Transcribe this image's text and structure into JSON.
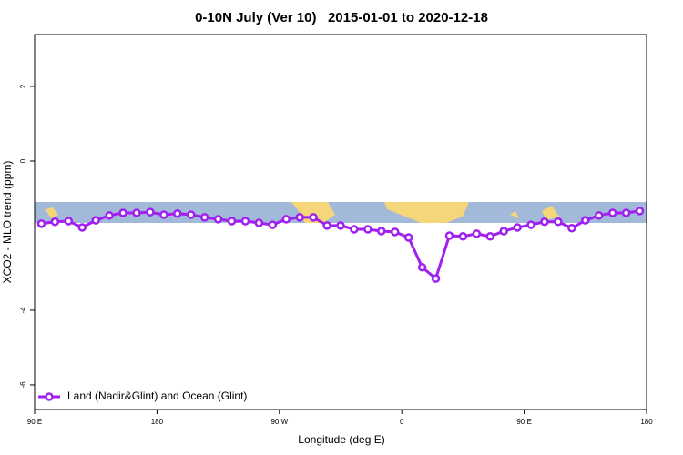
{
  "chart_data": {
    "type": "line",
    "title": "0-10N July (Ver 10)   2015-01-01 to 2020-12-18",
    "x_label": "Longitude (deg E)",
    "y_label": "XCO2 - MLO trend (ppm)",
    "x": [
      95,
      105,
      115,
      125,
      135,
      145,
      155,
      165,
      175,
      185,
      195,
      205,
      215,
      225,
      235,
      245,
      255,
      265,
      275,
      285,
      295,
      305,
      315,
      325,
      335,
      345,
      355,
      365,
      375,
      385,
      395,
      405,
      415,
      425,
      435,
      445,
      455,
      465,
      475,
      485,
      495,
      505,
      515,
      525,
      535
    ],
    "series": [
      {
        "name": "Land (Nadir&Glint) and Ocean (Glint)",
        "color": "#a020f0",
        "values": [
          -1.68,
          -1.63,
          -1.61,
          -1.78,
          -1.59,
          -1.46,
          -1.39,
          -1.39,
          -1.37,
          -1.44,
          -1.41,
          -1.44,
          -1.51,
          -1.56,
          -1.61,
          -1.61,
          -1.66,
          -1.71,
          -1.56,
          -1.51,
          -1.51,
          -1.73,
          -1.73,
          -1.83,
          -1.83,
          -1.88,
          -1.9,
          -2.05,
          -2.85,
          -3.15,
          -2.0,
          -2.02,
          -1.95,
          -2.02,
          -1.88,
          -1.78,
          -1.71,
          -1.63,
          -1.63,
          -1.8,
          -1.59,
          -1.46,
          -1.39,
          -1.39,
          -1.34
        ]
      }
    ],
    "xlim": [
      90,
      540
    ],
    "xticks": [
      {
        "value": 90,
        "label": "90 E"
      },
      180,
      {
        "value": 270,
        "label": "90 W"
      },
      {
        "value": 360,
        "label": "0"
      },
      {
        "value": 450,
        "label": "90 E"
      },
      {
        "value": 540,
        "label": "180"
      }
    ],
    "ylim": [
      -6.66,
      3.39
    ],
    "yticks": [
      2,
      0,
      -4,
      -6
    ],
    "legend": "bottom-left"
  }
}
